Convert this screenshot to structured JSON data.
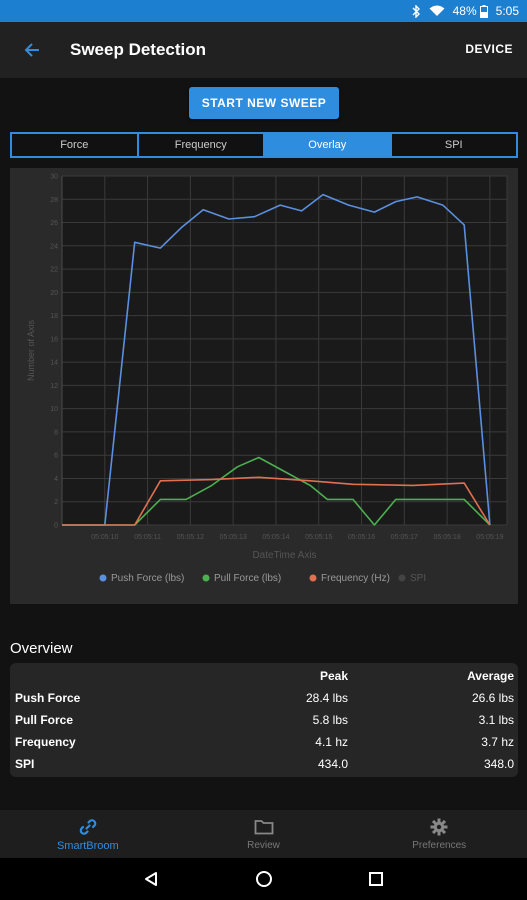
{
  "status_bar": {
    "battery": "48%",
    "time": "5:05",
    "icons": [
      "bluetooth-icon",
      "wifi-icon",
      "battery-icon"
    ]
  },
  "app_bar": {
    "title": "Sweep Detection",
    "action": "DEVICE",
    "back_icon": "arrow-left-icon"
  },
  "start_button": "START NEW SWEEP",
  "tabs": [
    {
      "label": "Force",
      "active": false
    },
    {
      "label": "Frequency",
      "active": false
    },
    {
      "label": "Overlay",
      "active": true
    },
    {
      "label": "SPI",
      "active": false
    }
  ],
  "chart_data": {
    "type": "line",
    "xlabel": "DateTime Axis",
    "ylabel": "Number of Axis",
    "ylim": [
      0,
      30
    ],
    "yticks": [
      0,
      2,
      4,
      6,
      8,
      10,
      12,
      14,
      16,
      18,
      20,
      22,
      24,
      26,
      28,
      30
    ],
    "xticks": [
      "05:05:10",
      "05:05:11",
      "05:05:12",
      "05:05:13",
      "05:05:14",
      "05:05:15",
      "05:05:16",
      "05:05:17",
      "05:05:18",
      "05:05:19"
    ],
    "xlim": [
      9.0,
      19.4
    ],
    "grid": true,
    "legend_position": "bottom",
    "series": [
      {
        "name": "Push Force (lbs)",
        "color": "#5b8fe0",
        "points": [
          [
            9.0,
            0
          ],
          [
            10.0,
            0
          ],
          [
            10.7,
            24.3
          ],
          [
            11.3,
            23.8
          ],
          [
            11.8,
            25.6
          ],
          [
            12.3,
            27.1
          ],
          [
            12.9,
            26.3
          ],
          [
            13.5,
            26.5
          ],
          [
            14.1,
            27.5
          ],
          [
            14.6,
            27.0
          ],
          [
            15.1,
            28.4
          ],
          [
            15.7,
            27.5
          ],
          [
            16.3,
            26.9
          ],
          [
            16.8,
            27.8
          ],
          [
            17.3,
            28.2
          ],
          [
            17.9,
            27.5
          ],
          [
            18.4,
            25.8
          ],
          [
            19.0,
            0
          ]
        ]
      },
      {
        "name": "Pull Force (lbs)",
        "color": "#4caf50",
        "points": [
          [
            9.0,
            0
          ],
          [
            10.7,
            0
          ],
          [
            11.3,
            2.2
          ],
          [
            11.9,
            2.2
          ],
          [
            12.5,
            3.4
          ],
          [
            13.1,
            5.0
          ],
          [
            13.6,
            5.8
          ],
          [
            14.2,
            4.6
          ],
          [
            14.8,
            3.4
          ],
          [
            15.2,
            2.2
          ],
          [
            15.8,
            2.2
          ],
          [
            16.3,
            0
          ],
          [
            16.8,
            2.2
          ],
          [
            17.4,
            2.2
          ],
          [
            18.0,
            2.2
          ],
          [
            18.4,
            2.2
          ],
          [
            19.0,
            0
          ]
        ]
      },
      {
        "name": "Frequency (Hz)",
        "color": "#e07050",
        "points": [
          [
            9.0,
            0
          ],
          [
            10.7,
            0
          ],
          [
            11.3,
            3.8
          ],
          [
            12.5,
            3.9
          ],
          [
            13.6,
            4.1
          ],
          [
            14.8,
            3.8
          ],
          [
            15.8,
            3.5
          ],
          [
            17.2,
            3.4
          ],
          [
            18.4,
            3.6
          ],
          [
            19.0,
            0
          ]
        ]
      },
      {
        "name": "SPI",
        "color": "#444444",
        "points": []
      }
    ]
  },
  "overview": {
    "title": "Overview",
    "headers": [
      "",
      "Peak",
      "Average"
    ],
    "rows": [
      {
        "label": "Push Force",
        "peak": "28.4 lbs",
        "average": "26.6 lbs"
      },
      {
        "label": "Pull Force",
        "peak": "5.8 lbs",
        "average": "3.1 lbs"
      },
      {
        "label": "Frequency",
        "peak": "4.1 hz",
        "average": "3.7 hz"
      },
      {
        "label": "SPI",
        "peak": "434.0",
        "average": "348.0"
      }
    ]
  },
  "bottom_nav": [
    {
      "label": "SmartBroom",
      "icon": "link-icon",
      "active": true
    },
    {
      "label": "Review",
      "icon": "folder-icon",
      "active": false
    },
    {
      "label": "Preferences",
      "icon": "gear-icon",
      "active": false
    }
  ],
  "system_nav": [
    "back-triangle-icon",
    "home-circle-icon",
    "recents-square-icon"
  ],
  "colors": {
    "accent": "#2f8de0",
    "status_bar": "#1c7fd0",
    "background": "#121212"
  }
}
